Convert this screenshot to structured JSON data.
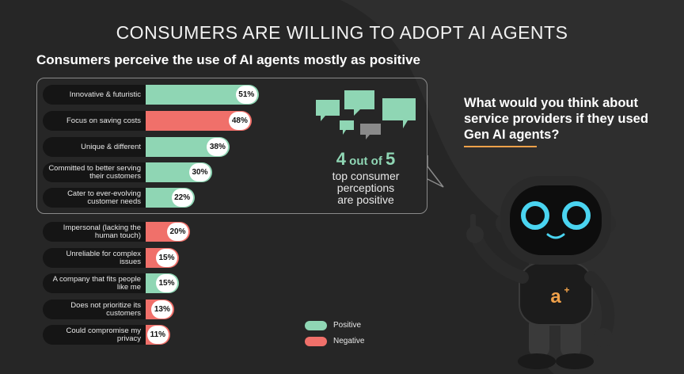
{
  "title": "CONSUMERS ARE WILLING TO ADOPT AI AGENTS",
  "subtitle": "Consumers perceive the use of AI agents mostly as positive",
  "question": "What would you think about service providers if they used Gen AI agents?",
  "stat": {
    "num": "4",
    "mid": " out of ",
    "den": "5",
    "rest": [
      "top consumer",
      "perceptions",
      "are positive"
    ]
  },
  "legend": [
    {
      "label": "Positive",
      "color": "#8fd6b4"
    },
    {
      "label": "Negative",
      "color": "#f0706a"
    }
  ],
  "colors": {
    "positive": "#8fd6b4",
    "negative": "#f0706a",
    "background": "#262626"
  },
  "chart_data": {
    "type": "bar",
    "title": "Consumers perceive the use of AI agents mostly as positive",
    "categories": [
      "Innovative & futuristic",
      "Focus on saving costs",
      "Unique & different",
      "Committed to better serving their customers",
      "Cater to ever-evolving customer needs",
      "Impersonal (lacking the human touch)",
      "Unreliable for complex issues",
      "A company that fits people like me",
      "Does not prioritize its customers",
      "Could compromise my privacy"
    ],
    "values": [
      51,
      48,
      38,
      30,
      22,
      20,
      15,
      15,
      13,
      11
    ],
    "value_labels": [
      "51%",
      "48%",
      "38%",
      "30%",
      "22%",
      "20%",
      "15%",
      "15%",
      "13%",
      "11%"
    ],
    "sentiment": [
      "Positive",
      "Negative",
      "Positive",
      "Positive",
      "Positive",
      "Negative",
      "Negative",
      "Positive",
      "Negative",
      "Negative"
    ],
    "xlim": [
      0,
      100
    ],
    "legend": [
      "Positive",
      "Negative"
    ],
    "legend_position": "bottom-center",
    "grid": false
  }
}
